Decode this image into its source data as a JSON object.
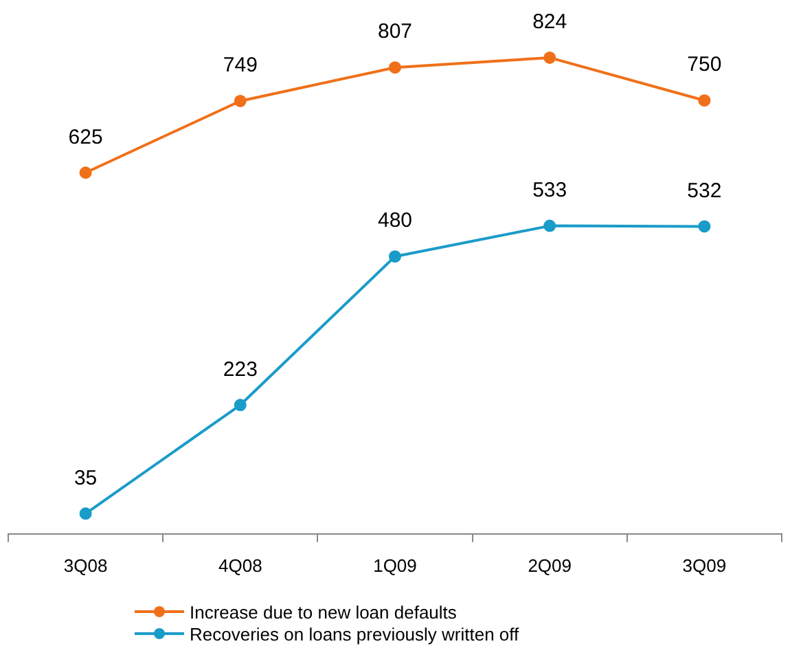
{
  "chart_data": {
    "type": "line",
    "categories": [
      "3Q08",
      "4Q08",
      "1Q09",
      "2Q09",
      "3Q09"
    ],
    "series": [
      {
        "name": "Increase due to new loan defaults",
        "color": "#f07019",
        "values": [
          625,
          749,
          807,
          824,
          750
        ]
      },
      {
        "name": "Recoveries on loans previously written off",
        "color": "#1a9cc9",
        "values": [
          35,
          223,
          480,
          533,
          532
        ]
      }
    ],
    "data_labels": true,
    "marker": "circle",
    "legend": "bottom",
    "grid": false,
    "tick_labels": "x"
  }
}
